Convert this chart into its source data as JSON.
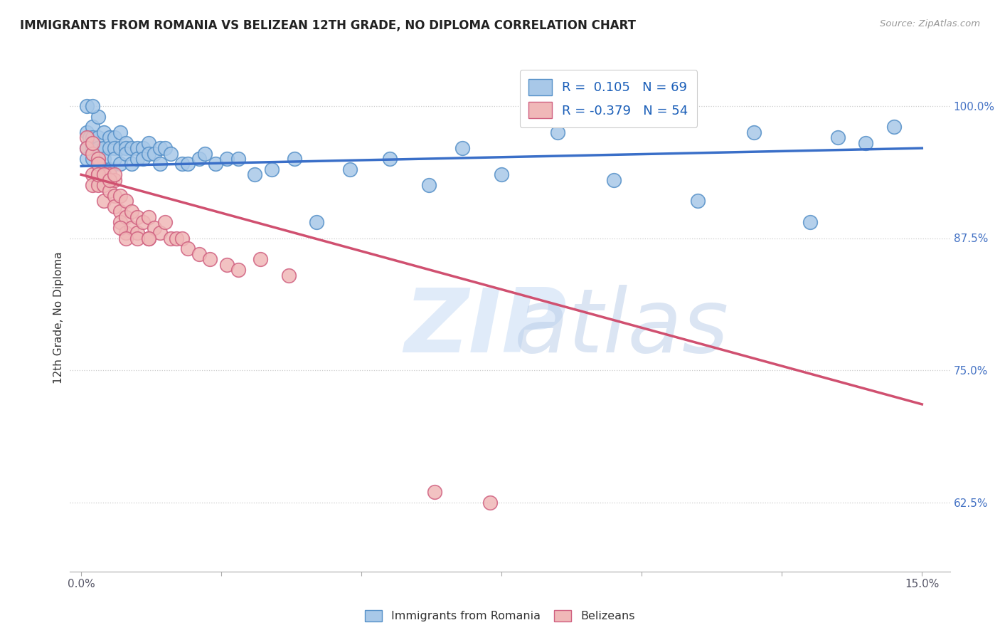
{
  "title": "IMMIGRANTS FROM ROMANIA VS BELIZEAN 12TH GRADE, NO DIPLOMA CORRELATION CHART",
  "source": "Source: ZipAtlas.com",
  "ylabel": "12th Grade, No Diploma",
  "ytick_labels": [
    "100.0%",
    "87.5%",
    "75.0%",
    "62.5%"
  ],
  "ytick_values": [
    1.0,
    0.875,
    0.75,
    0.625
  ],
  "xlim": [
    -0.002,
    0.155
  ],
  "ylim": [
    0.56,
    1.04
  ],
  "romania_R": 0.105,
  "romania_N": 69,
  "belize_R": -0.379,
  "belize_N": 54,
  "romania_color": "#a8c8e8",
  "romania_edge_color": "#5590c8",
  "belize_color": "#f0b8b8",
  "belize_edge_color": "#d06080",
  "romania_line_color": "#3a6fc8",
  "belize_line_color": "#d05070",
  "legend_label_romania": "Immigrants from Romania",
  "legend_label_belize": "Belizeans",
  "romania_line_x": [
    0.0,
    0.15
  ],
  "romania_line_y": [
    0.943,
    0.96
  ],
  "belize_line_x": [
    0.0,
    0.15
  ],
  "belize_line_y": [
    0.935,
    0.718
  ],
  "romania_scatter_x": [
    0.001,
    0.001,
    0.001,
    0.0015,
    0.002,
    0.002,
    0.002,
    0.002,
    0.003,
    0.003,
    0.003,
    0.003,
    0.004,
    0.004,
    0.004,
    0.004,
    0.005,
    0.005,
    0.005,
    0.006,
    0.006,
    0.006,
    0.007,
    0.007,
    0.007,
    0.008,
    0.008,
    0.008,
    0.009,
    0.009,
    0.01,
    0.01,
    0.011,
    0.011,
    0.012,
    0.012,
    0.013,
    0.014,
    0.014,
    0.015,
    0.016,
    0.018,
    0.019,
    0.021,
    0.022,
    0.024,
    0.026,
    0.028,
    0.031,
    0.034,
    0.038,
    0.042,
    0.048,
    0.055,
    0.062,
    0.068,
    0.075,
    0.085,
    0.095,
    0.11,
    0.12,
    0.13,
    0.135,
    0.14,
    0.145,
    0.001,
    0.002,
    0.003,
    0.004
  ],
  "romania_scatter_y": [
    0.975,
    0.96,
    0.95,
    0.97,
    0.98,
    0.97,
    0.96,
    0.95,
    0.99,
    0.97,
    0.96,
    0.95,
    0.975,
    0.96,
    0.95,
    0.94,
    0.97,
    0.96,
    0.94,
    0.97,
    0.96,
    0.95,
    0.975,
    0.96,
    0.945,
    0.965,
    0.96,
    0.955,
    0.96,
    0.945,
    0.96,
    0.95,
    0.96,
    0.95,
    0.965,
    0.955,
    0.955,
    0.96,
    0.945,
    0.96,
    0.955,
    0.945,
    0.945,
    0.95,
    0.955,
    0.945,
    0.95,
    0.95,
    0.935,
    0.94,
    0.95,
    0.89,
    0.94,
    0.95,
    0.925,
    0.96,
    0.935,
    0.975,
    0.93,
    0.91,
    0.975,
    0.89,
    0.97,
    0.965,
    0.98,
    1.0,
    1.0,
    0.93,
    0.935
  ],
  "belize_scatter_x": [
    0.001,
    0.001,
    0.002,
    0.002,
    0.002,
    0.003,
    0.003,
    0.003,
    0.004,
    0.004,
    0.004,
    0.005,
    0.005,
    0.006,
    0.006,
    0.006,
    0.007,
    0.007,
    0.007,
    0.008,
    0.008,
    0.008,
    0.009,
    0.009,
    0.01,
    0.01,
    0.011,
    0.012,
    0.012,
    0.013,
    0.014,
    0.015,
    0.016,
    0.017,
    0.018,
    0.019,
    0.021,
    0.023,
    0.026,
    0.028,
    0.032,
    0.037,
    0.002,
    0.003,
    0.003,
    0.004,
    0.005,
    0.006,
    0.007,
    0.008,
    0.01,
    0.012,
    0.063,
    0.073
  ],
  "belize_scatter_y": [
    0.97,
    0.96,
    0.955,
    0.935,
    0.925,
    0.95,
    0.935,
    0.925,
    0.935,
    0.925,
    0.91,
    0.935,
    0.92,
    0.93,
    0.915,
    0.905,
    0.915,
    0.9,
    0.89,
    0.91,
    0.895,
    0.88,
    0.9,
    0.885,
    0.895,
    0.88,
    0.89,
    0.895,
    0.875,
    0.885,
    0.88,
    0.89,
    0.875,
    0.875,
    0.875,
    0.865,
    0.86,
    0.855,
    0.85,
    0.845,
    0.855,
    0.84,
    0.965,
    0.945,
    0.935,
    0.935,
    0.93,
    0.935,
    0.885,
    0.875,
    0.875,
    0.875,
    0.635,
    0.625
  ]
}
